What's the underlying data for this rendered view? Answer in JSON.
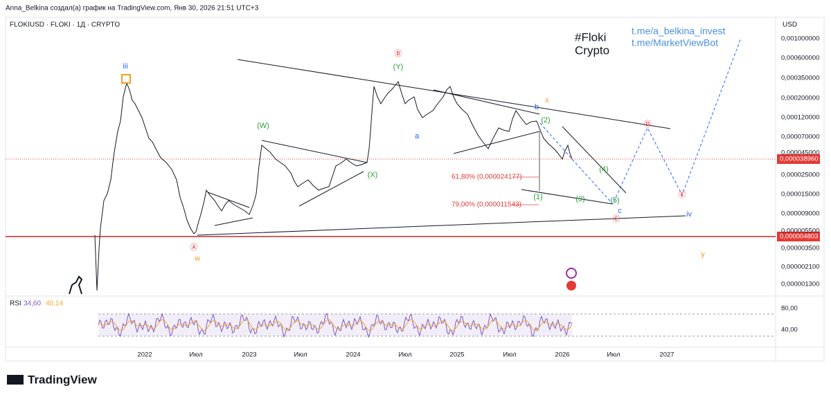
{
  "header": "Anna_Belkina создал(а) график на TradingView.com, Янв 30, 2026 21:51 UTC+3",
  "symbol": "FLOKIUSD · FLOKI · 1Д · CRYPTO",
  "price_axis": {
    "unit": "USD",
    "ticks": [
      "0,001000000",
      "0,000600000",
      "0,000350000",
      "0,000200000",
      "0,000120000",
      "0,000070000",
      "0,000045000",
      "0,000025000",
      "0,000015000",
      "0,000009000",
      "0,000005500",
      "0,000003500",
      "0,000002100",
      "0,000001300"
    ]
  },
  "highlighted_prices": [
    "0,000038960",
    "0,000004803"
  ],
  "rsi": {
    "label": "RSI",
    "values": [
      "34,60",
      "40,14"
    ],
    "ticks": [
      "80,00",
      "40,00"
    ]
  },
  "time_axis": [
    "2022",
    "Июл",
    "2023",
    "Июл",
    "2024",
    "Июл",
    "2025",
    "Июл",
    "2026",
    "Июл",
    "2027"
  ],
  "annotations": [
    "iii",
    "w",
    "Ⓐ",
    "Ⓑ",
    "(Y)",
    "(W)",
    "(X)",
    "a",
    "b",
    "x",
    "(2)",
    "(1)",
    "(3)",
    "(4)",
    "(5)",
    "c",
    "Ⓒ",
    "Ⓓ",
    "Ⓔ",
    "iv",
    "y"
  ],
  "fib_levels": [
    "61,80% (0,000024177)",
    "79,00% (0,000011543)"
  ],
  "hashtag": [
    "#Floki",
    "Crypto"
  ],
  "links": [
    "t.me/a_belkina_invest",
    "t.me/MarketViewBot"
  ],
  "logo": "TradingView"
}
